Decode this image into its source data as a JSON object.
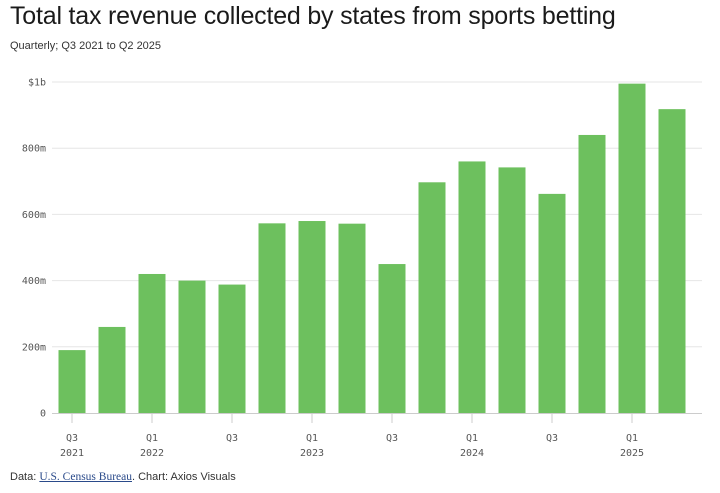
{
  "header": {
    "title": "Total tax revenue collected by states from sports betting",
    "subtitle": "Quarterly; Q3 2021 to Q2 2025"
  },
  "footer": {
    "data_prefix": "Data: ",
    "source_link": "U.S. Census Bureau",
    "credit": ". Chart: Axios Visuals"
  },
  "colors": {
    "bar": "#6dc05e",
    "grid": "#e6e6e6",
    "axis": "#cccccc"
  },
  "chart_data": {
    "type": "bar",
    "title": "Total tax revenue collected by states from sports betting",
    "subtitle": "Quarterly; Q3 2021 to Q2 2025",
    "xlabel": "",
    "ylabel": "",
    "ylim": [
      0,
      1000
    ],
    "grid": true,
    "categories": [
      "Q3 2021",
      "Q4 2021",
      "Q1 2022",
      "Q2 2022",
      "Q3 2022",
      "Q4 2022",
      "Q1 2023",
      "Q2 2023",
      "Q3 2023",
      "Q4 2023",
      "Q1 2024",
      "Q2 2024",
      "Q3 2024",
      "Q4 2024",
      "Q1 2025",
      "Q2 2025"
    ],
    "values": [
      190,
      260,
      420,
      400,
      388,
      573,
      580,
      572,
      450,
      697,
      760,
      742,
      662,
      840,
      995,
      918
    ],
    "y_ticks": [
      {
        "value": 0,
        "label": "0"
      },
      {
        "value": 200,
        "label": "200m"
      },
      {
        "value": 400,
        "label": "400m"
      },
      {
        "value": 600,
        "label": "600m"
      },
      {
        "value": 800,
        "label": "800m"
      },
      {
        "value": 1000,
        "label": "$1b"
      }
    ],
    "x_ticks": [
      {
        "index": 0,
        "label": "Q3",
        "year": "2021"
      },
      {
        "index": 2,
        "label": "Q1",
        "year": "2022"
      },
      {
        "index": 4,
        "label": "Q3",
        "year": ""
      },
      {
        "index": 6,
        "label": "Q1",
        "year": "2023"
      },
      {
        "index": 8,
        "label": "Q3",
        "year": ""
      },
      {
        "index": 10,
        "label": "Q1",
        "year": "2024"
      },
      {
        "index": 12,
        "label": "Q3",
        "year": ""
      },
      {
        "index": 14,
        "label": "Q1",
        "year": "2025"
      }
    ]
  }
}
